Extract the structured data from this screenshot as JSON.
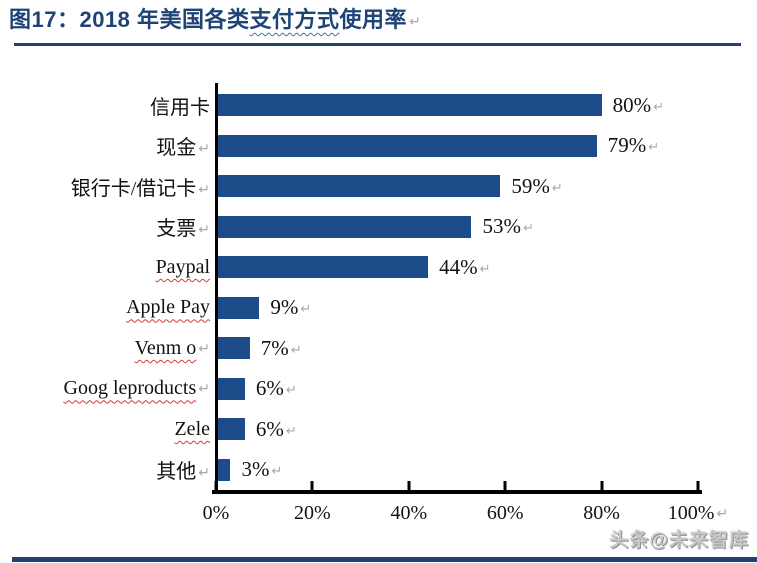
{
  "header": {
    "title_prefix": "图17：2018 年美国各类",
    "title_squiggle": "支付方式",
    "title_suffix": "使用率",
    "return_mark": "↵"
  },
  "chart_data": {
    "type": "bar",
    "orientation": "horizontal",
    "title": "2018 年美国各类支付方式使用率",
    "categories": [
      "信用卡",
      "现金",
      "银行卡/借记卡",
      "支票",
      "Paypal",
      "Apple Pay",
      "Venm o",
      "Goog leproducts",
      "Zele",
      "其他"
    ],
    "values": [
      80,
      79,
      59,
      53,
      44,
      9,
      7,
      6,
      6,
      3
    ],
    "value_labels": [
      "80%",
      "79%",
      "59%",
      "53%",
      "44%",
      "9%",
      "7%",
      "6%",
      "6%",
      "3%"
    ],
    "label_return_marks": [
      false,
      true,
      true,
      true,
      false,
      false,
      true,
      true,
      false,
      true
    ],
    "misspelled": [
      false,
      false,
      false,
      false,
      true,
      true,
      true,
      true,
      true,
      false
    ],
    "x_ticks": [
      "0%",
      "20%",
      "40%",
      "60%",
      "80%",
      "100%"
    ],
    "xlabel": "",
    "ylabel": "",
    "xlim": [
      0,
      100
    ],
    "grid": false,
    "legend": false,
    "bar_color": "#1c4b8a",
    "return_mark": "↵"
  },
  "footer": {
    "watermark": "头条@未来智库"
  }
}
